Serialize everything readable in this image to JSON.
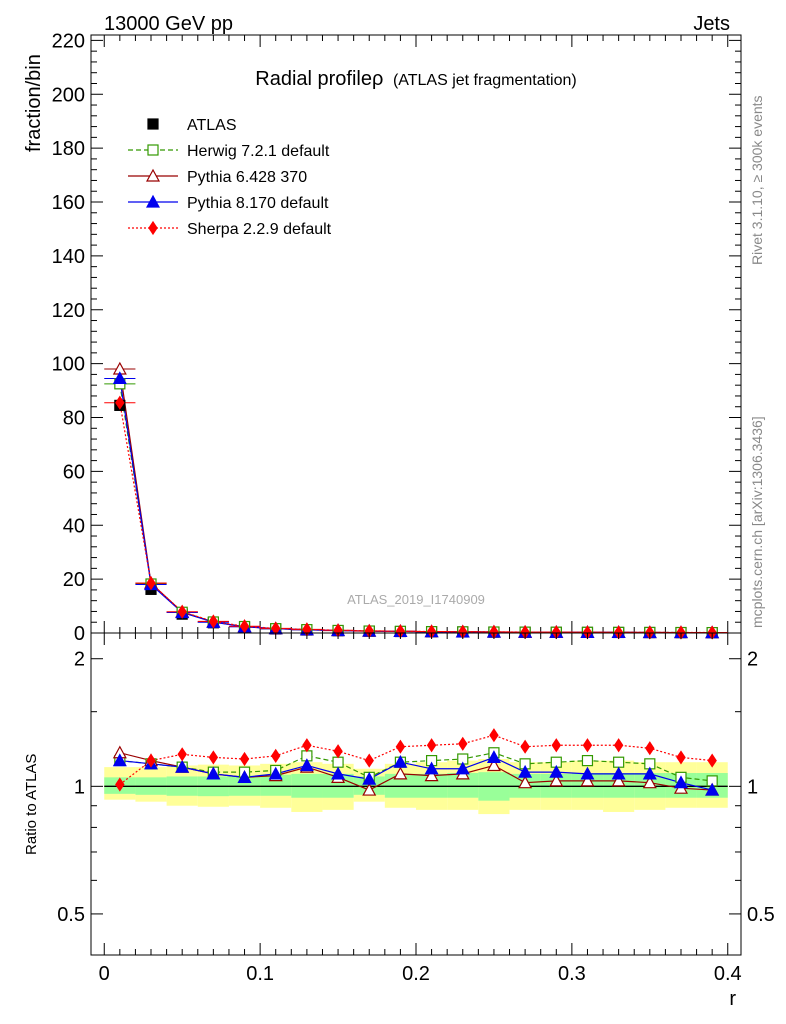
{
  "header": {
    "energy": "13000 GeV pp",
    "category": "Jets",
    "side_rivet": "Rivet 3.1.10, ≥ 300k events",
    "side_site": "mcplots.cern.ch [arXiv:1306.3436]",
    "analysis_id": "ATLAS_2019_I1740909"
  },
  "chart_data": [
    {
      "type": "scatter",
      "panel": "main",
      "title": "Radial profileρ",
      "subtitle": "(ATLAS jet fragmentation)",
      "xlabel": "r",
      "ylabel": "fraction/bin",
      "xlim": [
        -0.0085,
        0.4085
      ],
      "ylim": [
        0,
        222
      ],
      "xticks": [
        0,
        0.1,
        0.2,
        0.3,
        0.4
      ],
      "xtick_labels": [
        "0",
        "0.1",
        "0.2",
        "0.3",
        "0.4"
      ],
      "yticks": [
        0,
        20,
        40,
        60,
        80,
        100,
        120,
        140,
        160,
        180,
        200,
        220
      ],
      "ytick_labels": [
        "0",
        "20",
        "40",
        "60",
        "80",
        "100",
        "120",
        "140",
        "160",
        "180",
        "200",
        "220"
      ],
      "x": [
        0.01,
        0.03,
        0.05,
        0.07,
        0.09,
        0.11,
        0.13,
        0.15,
        0.17,
        0.19,
        0.21,
        0.23,
        0.25,
        0.27,
        0.29,
        0.31,
        0.33,
        0.35,
        0.37,
        0.39
      ],
      "series": [
        {
          "name": "ATLAS",
          "color": "#000000",
          "marker": "square-filled",
          "values": [
            84.5,
            16.2,
            7.0,
            3.8,
            2.2,
            1.5,
            1.1,
            0.85,
            0.7,
            0.55,
            0.45,
            0.38,
            0.32,
            0.28,
            0.25,
            0.22,
            0.2,
            0.18,
            0.16,
            0.15
          ]
        },
        {
          "name": "Herwig 7.2.1 default",
          "color": "#339900",
          "marker": "square-open",
          "values": [
            92.5,
            18.2,
            7.7,
            4.1,
            2.4,
            1.6,
            1.25,
            0.95,
            0.73,
            0.61,
            0.5,
            0.43,
            0.37,
            0.31,
            0.28,
            0.25,
            0.22,
            0.2,
            0.17,
            0.15
          ]
        },
        {
          "name": "Pythia 6.428 370",
          "color": "#990000",
          "marker": "triangle-open",
          "values": [
            98,
            18.5,
            7.8,
            4.1,
            2.35,
            1.6,
            1.2,
            0.9,
            0.68,
            0.59,
            0.48,
            0.4,
            0.36,
            0.29,
            0.26,
            0.23,
            0.21,
            0.19,
            0.16,
            0.15
          ]
        },
        {
          "name": "Pythia 8.170 default",
          "color": "#0000ee",
          "marker": "triangle-filled",
          "values": [
            94.5,
            18.0,
            7.6,
            4.0,
            2.3,
            1.6,
            1.2,
            0.92,
            0.72,
            0.61,
            0.49,
            0.41,
            0.37,
            0.3,
            0.27,
            0.24,
            0.21,
            0.19,
            0.16,
            0.15
          ]
        },
        {
          "name": "Sherpa 2.2.9 default",
          "color": "#ff0000",
          "marker": "diamond-filled",
          "values": [
            85.5,
            18.5,
            7.9,
            4.3,
            2.5,
            1.7,
            1.35,
            1.0,
            0.78,
            0.65,
            0.55,
            0.47,
            0.42,
            0.34,
            0.31,
            0.27,
            0.25,
            0.22,
            0.18,
            0.17
          ]
        }
      ]
    },
    {
      "type": "scatter",
      "panel": "ratio",
      "ylabel": "Ratio to ATLAS",
      "xlabel": "r",
      "log_y": true,
      "ylim": [
        0.4,
        2.3
      ],
      "yticks": [
        0.5,
        1,
        2
      ],
      "ytick_labels": [
        "0.5",
        "1",
        "2"
      ],
      "xlim": [
        -0.0085,
        0.4085
      ],
      "x": [
        0.01,
        0.03,
        0.05,
        0.07,
        0.09,
        0.11,
        0.13,
        0.15,
        0.17,
        0.19,
        0.21,
        0.23,
        0.25,
        0.27,
        0.29,
        0.31,
        0.33,
        0.35,
        0.37,
        0.39
      ],
      "band_outer": {
        "color": "#ffff99",
        "lo": [
          0.93,
          0.92,
          0.9,
          0.895,
          0.9,
          0.89,
          0.87,
          0.88,
          0.92,
          0.89,
          0.88,
          0.88,
          0.86,
          0.88,
          0.88,
          0.88,
          0.87,
          0.88,
          0.89,
          0.89
        ],
        "hi": [
          1.11,
          1.11,
          1.12,
          1.125,
          1.12,
          1.13,
          1.14,
          1.13,
          1.1,
          1.13,
          1.14,
          1.15,
          1.16,
          1.14,
          1.14,
          1.15,
          1.15,
          1.14,
          1.14,
          1.14
        ]
      },
      "band_inner": {
        "color": "#99ff99",
        "lo": [
          0.96,
          0.955,
          0.95,
          0.948,
          0.95,
          0.95,
          0.94,
          0.94,
          0.955,
          0.94,
          0.94,
          0.94,
          0.925,
          0.94,
          0.94,
          0.94,
          0.94,
          0.94,
          0.94,
          0.94
        ],
        "hi": [
          1.05,
          1.05,
          1.055,
          1.055,
          1.06,
          1.065,
          1.07,
          1.07,
          1.055,
          1.07,
          1.07,
          1.075,
          1.08,
          1.07,
          1.07,
          1.075,
          1.075,
          1.075,
          1.075,
          1.075
        ]
      },
      "series": [
        {
          "name": "Herwig 7.2.1 default",
          "color": "#339900",
          "marker": "square-open",
          "values": [
            1.15,
            1.13,
            1.11,
            1.08,
            1.08,
            1.09,
            1.18,
            1.14,
            1.05,
            1.14,
            1.15,
            1.16,
            1.2,
            1.13,
            1.14,
            1.15,
            1.14,
            1.13,
            1.05,
            1.03
          ]
        },
        {
          "name": "Pythia 6.428 370",
          "color": "#990000",
          "marker": "triangle-open",
          "values": [
            1.2,
            1.15,
            1.11,
            1.07,
            1.05,
            1.06,
            1.11,
            1.05,
            0.98,
            1.07,
            1.06,
            1.07,
            1.12,
            1.02,
            1.03,
            1.03,
            1.03,
            1.02,
            0.99,
            0.98
          ]
        },
        {
          "name": "Pythia 8.170 default",
          "color": "#0000ee",
          "marker": "triangle-filled",
          "values": [
            1.15,
            1.13,
            1.11,
            1.07,
            1.05,
            1.07,
            1.12,
            1.07,
            1.04,
            1.14,
            1.1,
            1.1,
            1.17,
            1.08,
            1.08,
            1.07,
            1.07,
            1.07,
            1.02,
            0.98
          ]
        },
        {
          "name": "Sherpa 2.2.9 default",
          "color": "#ff0000",
          "marker": "diamond-filled",
          "values": [
            1.01,
            1.15,
            1.19,
            1.17,
            1.16,
            1.18,
            1.25,
            1.21,
            1.15,
            1.24,
            1.25,
            1.26,
            1.32,
            1.24,
            1.25,
            1.25,
            1.25,
            1.23,
            1.17,
            1.15
          ]
        }
      ]
    }
  ]
}
